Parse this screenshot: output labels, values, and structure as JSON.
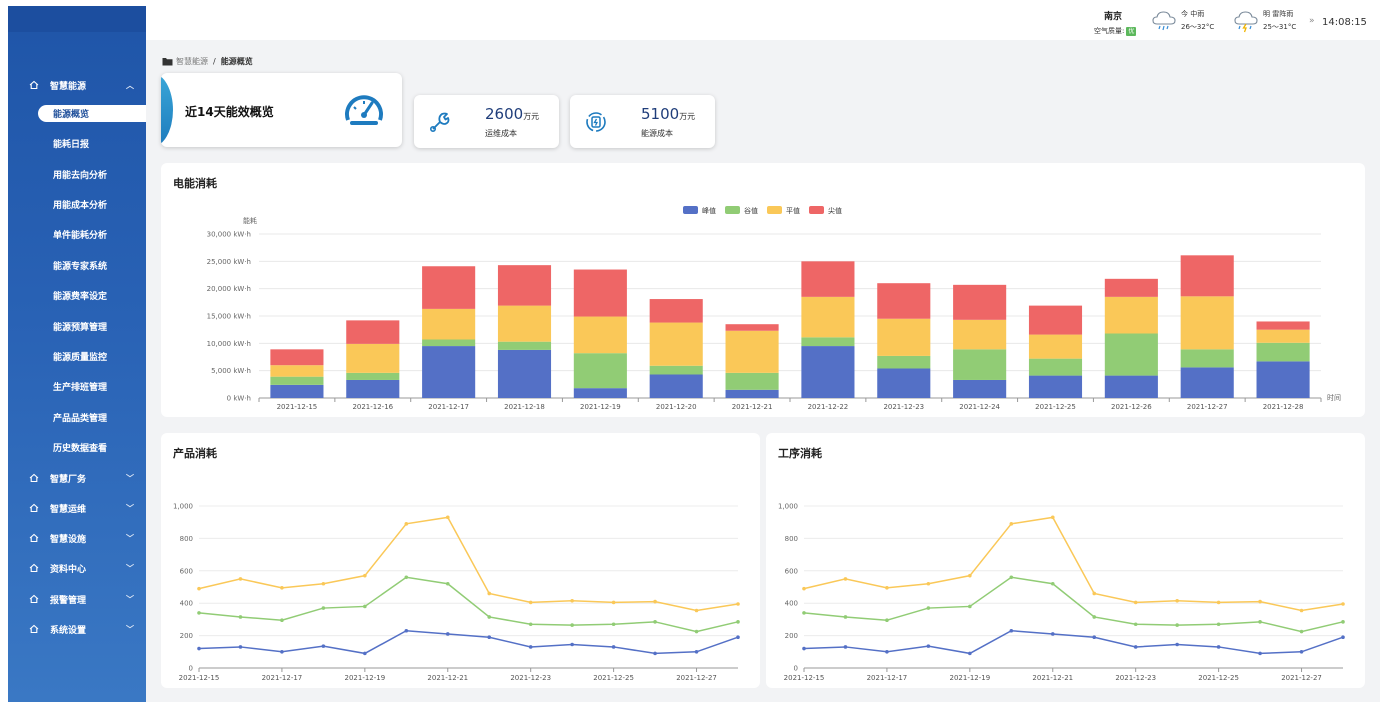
{
  "sidebar": {
    "groups": [
      {
        "label": "智慧能源",
        "expanded": true,
        "icon": "home-icon"
      },
      {
        "label": "智慧厂务",
        "expanded": false,
        "icon": "home-icon"
      },
      {
        "label": "智慧运维",
        "expanded": false,
        "icon": "home-icon"
      },
      {
        "label": "智慧设施",
        "expanded": false,
        "icon": "home-icon"
      },
      {
        "label": "资料中心",
        "expanded": false,
        "icon": "home-icon"
      },
      {
        "label": "报警管理",
        "expanded": false,
        "icon": "home-icon"
      },
      {
        "label": "系统设置",
        "expanded": false,
        "icon": "home-icon"
      }
    ],
    "sub_items": [
      "能源概览",
      "能耗日报",
      "用能去向分析",
      "用能成本分析",
      "单件能耗分析",
      "能源专家系统",
      "能源费率设定",
      "能源预算管理",
      "能源质量监控",
      "生产排班管理",
      "产品品类管理",
      "历史数据查看"
    ],
    "active_sub": "能源概览"
  },
  "header": {
    "city": "南京",
    "air_quality_label": "空气质量:",
    "air_quality_badge": "优",
    "today": {
      "label": "今 中雨",
      "temp": "26～32°C"
    },
    "tomorrow": {
      "label": "明 雷阵雨",
      "temp": "25～31°C"
    },
    "sep": "»",
    "time": "14:08:15"
  },
  "breadcrumb": {
    "parent": "智慧能源",
    "sep": "/",
    "current": "能源概览"
  },
  "summary": {
    "title": "近14天能效概览",
    "cards": [
      {
        "value": "2600",
        "unit": "万元",
        "label": "运维成本"
      },
      {
        "value": "5100",
        "unit": "万元",
        "label": "能源成本"
      }
    ]
  },
  "colors": {
    "peak": "#5470c6",
    "valley": "#91cc75",
    "flat": "#fac858",
    "sharp": "#ee6666",
    "accent": "#1f55a8"
  },
  "electric": {
    "title": "电能消耗",
    "chart_data": {
      "type": "bar",
      "stacked": true,
      "ylabel": "能耗",
      "xlabel": "时间",
      "y_unit": "kW·h",
      "ylim": [
        0,
        30000
      ],
      "yticks": [
        "0 kW·h",
        "5,000 kW·h",
        "10,000 kW·h",
        "15,000 kW·h",
        "20,000 kW·h",
        "25,000 kW·h",
        "30,000 kW·h"
      ],
      "legend_position": "top-center",
      "categories": [
        "2021-12-15",
        "2021-12-16",
        "2021-12-17",
        "2021-12-18",
        "2021-12-19",
        "2021-12-20",
        "2021-12-21",
        "2021-12-22",
        "2021-12-23",
        "2021-12-24",
        "2021-12-25",
        "2021-12-26",
        "2021-12-27",
        "2021-12-28"
      ],
      "series": [
        {
          "name": "峰值",
          "values": [
            2400,
            3300,
            9500,
            8800,
            1800,
            4300,
            1500,
            9500,
            5400,
            3300,
            4100,
            4100,
            5600,
            6700
          ]
        },
        {
          "name": "谷值",
          "values": [
            1500,
            1300,
            1200,
            1500,
            6400,
            1600,
            3100,
            1600,
            2300,
            5600,
            3100,
            7700,
            3300,
            3400
          ]
        },
        {
          "name": "平值",
          "values": [
            2100,
            5300,
            5600,
            6600,
            6700,
            7900,
            7700,
            7400,
            6800,
            5400,
            4400,
            6700,
            9700,
            2400
          ]
        },
        {
          "name": "尖值",
          "values": [
            2900,
            4300,
            7800,
            7400,
            8600,
            4300,
            1200,
            6500,
            6500,
            6400,
            5300,
            3300,
            7500,
            1500
          ]
        }
      ]
    }
  },
  "product": {
    "title": "产品消耗",
    "chart_data": {
      "type": "line",
      "ylim": [
        0,
        1000
      ],
      "yticks": [
        "0",
        "200",
        "400",
        "600",
        "800",
        "1,000"
      ],
      "x": [
        "2021-12-15",
        "2021-12-16",
        "2021-12-17",
        "2021-12-18",
        "2021-12-19",
        "2021-12-20",
        "2021-12-21",
        "2021-12-22",
        "2021-12-23",
        "2021-12-24",
        "2021-12-25",
        "2021-12-26",
        "2021-12-27",
        "2021-12-28"
      ],
      "x_tick_labels": [
        "2021-12-15",
        "2021-12-17",
        "2021-12-19",
        "2021-12-21",
        "2021-12-23",
        "2021-12-25",
        "2021-12-27"
      ],
      "series": [
        {
          "values": [
            490,
            550,
            495,
            520,
            570,
            890,
            930,
            460,
            405,
            415,
            405,
            410,
            355,
            395
          ]
        },
        {
          "values": [
            340,
            315,
            295,
            370,
            380,
            560,
            520,
            315,
            270,
            265,
            270,
            285,
            225,
            285
          ]
        },
        {
          "values": [
            120,
            130,
            100,
            135,
            90,
            230,
            210,
            190,
            130,
            145,
            130,
            90,
            100,
            190
          ]
        }
      ]
    }
  },
  "process": {
    "title": "工序消耗",
    "chart_data": {
      "type": "line",
      "ylim": [
        0,
        1000
      ],
      "yticks": [
        "0",
        "200",
        "400",
        "600",
        "800",
        "1,000"
      ],
      "x": [
        "2021-12-15",
        "2021-12-16",
        "2021-12-17",
        "2021-12-18",
        "2021-12-19",
        "2021-12-20",
        "2021-12-21",
        "2021-12-22",
        "2021-12-23",
        "2021-12-24",
        "2021-12-25",
        "2021-12-26",
        "2021-12-27",
        "2021-12-28"
      ],
      "x_tick_labels": [
        "2021-12-15",
        "2021-12-17",
        "2021-12-19",
        "2021-12-21",
        "2021-12-23",
        "2021-12-25",
        "2021-12-27"
      ],
      "series": [
        {
          "values": [
            490,
            550,
            495,
            520,
            570,
            890,
            930,
            460,
            405,
            415,
            405,
            410,
            355,
            395
          ]
        },
        {
          "values": [
            340,
            315,
            295,
            370,
            380,
            560,
            520,
            315,
            270,
            265,
            270,
            285,
            225,
            285
          ]
        },
        {
          "values": [
            120,
            130,
            100,
            135,
            90,
            230,
            210,
            190,
            130,
            145,
            130,
            90,
            100,
            190
          ]
        }
      ]
    }
  }
}
